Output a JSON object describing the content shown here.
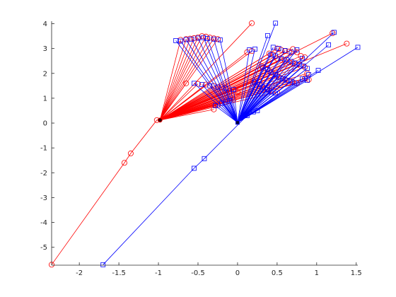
{
  "chart_data": {
    "type": "line",
    "title": "",
    "xlabel": "",
    "ylabel": "",
    "xlim": [
      -2.35,
      1.52
    ],
    "ylim": [
      -5.72,
      4.1
    ],
    "xticks": [
      -2,
      -1.5,
      -1,
      -0.5,
      0,
      0.5,
      1,
      1.5
    ],
    "xtick_labels": [
      "-2",
      "-1.5",
      "-1",
      "-0.5",
      "0",
      "0.5",
      "1",
      "1.5"
    ],
    "yticks": [
      -5,
      -4,
      -3,
      -2,
      -1,
      0,
      1,
      2,
      3,
      4
    ],
    "ytick_labels": [
      "-5",
      "-4",
      "-3",
      "-2",
      "-1",
      "0",
      "1",
      "2",
      "3",
      "4"
    ],
    "grid": false,
    "box": false,
    "colors": {
      "red_series": "#ff0000",
      "blue_series": "#0000ff",
      "axes": "#262626"
    },
    "series": [
      {
        "color": "#ff0000",
        "marker": "circle",
        "hub": [
          -0.98,
          0.12
        ],
        "open_chain": [
          [
            -1.02,
            0.12
          ],
          [
            -1.35,
            -1.22
          ],
          [
            -1.43,
            -1.6
          ],
          [
            -2.35,
            -5.7
          ]
        ],
        "spokes": [
          [
            0.18,
            4.02
          ],
          [
            1.38,
            3.2
          ],
          [
            1.2,
            3.62
          ],
          [
            -0.72,
            3.35
          ],
          [
            -0.65,
            3.38
          ],
          [
            -0.6,
            3.4
          ],
          [
            -0.55,
            3.42
          ],
          [
            -0.5,
            3.45
          ],
          [
            -0.45,
            3.5
          ],
          [
            -0.4,
            3.48
          ],
          [
            -0.35,
            3.44
          ],
          [
            -0.3,
            3.41
          ],
          [
            -0.25,
            3.38
          ],
          [
            -0.65,
            1.6
          ],
          [
            -0.5,
            1.58
          ],
          [
            -0.4,
            1.55
          ],
          [
            -0.3,
            1.5
          ],
          [
            -0.2,
            1.45
          ],
          [
            -0.1,
            1.3
          ],
          [
            0.0,
            1.25
          ],
          [
            -0.3,
            0.55
          ],
          [
            -0.25,
            0.72
          ],
          [
            -0.15,
            0.85
          ],
          [
            -0.05,
            0.95
          ],
          [
            0.12,
            2.85
          ],
          [
            0.18,
            2.9
          ],
          [
            0.5,
            3.0
          ],
          [
            0.55,
            2.95
          ],
          [
            0.6,
            2.9
          ],
          [
            0.65,
            2.88
          ],
          [
            0.7,
            2.98
          ],
          [
            0.75,
            2.85
          ],
          [
            0.8,
            2.7
          ],
          [
            0.4,
            2.8
          ],
          [
            0.45,
            2.75
          ],
          [
            0.5,
            2.6
          ],
          [
            0.55,
            2.55
          ],
          [
            0.6,
            2.5
          ],
          [
            0.65,
            2.45
          ],
          [
            0.7,
            2.4
          ],
          [
            0.75,
            2.35
          ],
          [
            0.8,
            2.3
          ],
          [
            0.85,
            2.25
          ],
          [
            0.3,
            2.3
          ],
          [
            0.35,
            2.2
          ],
          [
            0.4,
            2.1
          ],
          [
            0.45,
            2.0
          ],
          [
            0.5,
            1.9
          ],
          [
            0.55,
            1.8
          ],
          [
            0.6,
            1.75
          ],
          [
            0.65,
            1.7
          ],
          [
            0.7,
            1.65
          ],
          [
            0.75,
            1.6
          ],
          [
            0.2,
            1.7
          ],
          [
            0.25,
            1.6
          ],
          [
            0.3,
            1.5
          ],
          [
            0.35,
            1.4
          ],
          [
            0.4,
            1.3
          ],
          [
            0.5,
            1.25
          ],
          [
            0.85,
            1.8
          ],
          [
            0.9,
            1.75
          ],
          [
            0.88,
            2.0
          ],
          [
            0.85,
            2.65
          ]
        ]
      },
      {
        "color": "#0000ff",
        "marker": "square",
        "hub": [
          0.0,
          0.02
        ],
        "open_chain": [
          [
            0.12,
            0.3
          ],
          [
            -0.42,
            -1.43
          ],
          [
            -0.55,
            -1.82
          ],
          [
            -1.7,
            -5.7
          ]
        ],
        "spokes": [
          [
            0.48,
            4.02
          ],
          [
            1.52,
            3.05
          ],
          [
            1.22,
            3.65
          ],
          [
            0.38,
            3.52
          ],
          [
            1.15,
            3.15
          ],
          [
            1.02,
            2.12
          ],
          [
            -0.78,
            3.32
          ],
          [
            -0.72,
            3.3
          ],
          [
            -0.65,
            3.36
          ],
          [
            -0.58,
            3.38
          ],
          [
            -0.5,
            3.42
          ],
          [
            -0.43,
            3.44
          ],
          [
            -0.38,
            3.4
          ],
          [
            -0.3,
            3.38
          ],
          [
            -0.22,
            3.35
          ],
          [
            -0.55,
            1.6
          ],
          [
            -0.45,
            1.55
          ],
          [
            -0.35,
            1.5
          ],
          [
            -0.25,
            1.45
          ],
          [
            -0.15,
            1.4
          ],
          [
            -0.05,
            1.35
          ],
          [
            -0.28,
            0.7
          ],
          [
            -0.2,
            0.8
          ],
          [
            -0.1,
            0.9
          ],
          [
            0.15,
            2.95
          ],
          [
            0.22,
            2.98
          ],
          [
            0.45,
            3.05
          ],
          [
            0.52,
            3.0
          ],
          [
            0.6,
            2.92
          ],
          [
            0.68,
            2.85
          ],
          [
            0.75,
            2.95
          ],
          [
            0.82,
            2.6
          ],
          [
            0.42,
            2.75
          ],
          [
            0.48,
            2.7
          ],
          [
            0.55,
            2.6
          ],
          [
            0.62,
            2.55
          ],
          [
            0.68,
            2.48
          ],
          [
            0.72,
            2.42
          ],
          [
            0.78,
            2.38
          ],
          [
            0.83,
            2.3
          ],
          [
            0.88,
            2.2
          ],
          [
            0.32,
            2.25
          ],
          [
            0.38,
            2.15
          ],
          [
            0.42,
            2.05
          ],
          [
            0.48,
            1.95
          ],
          [
            0.52,
            1.85
          ],
          [
            0.58,
            1.78
          ],
          [
            0.62,
            1.72
          ],
          [
            0.68,
            1.68
          ],
          [
            0.72,
            1.62
          ],
          [
            0.22,
            1.65
          ],
          [
            0.28,
            1.55
          ],
          [
            0.32,
            1.45
          ],
          [
            0.38,
            1.35
          ],
          [
            0.42,
            1.25
          ],
          [
            0.48,
            1.2
          ],
          [
            0.82,
            1.78
          ],
          [
            0.88,
            1.72
          ],
          [
            0.9,
            1.95
          ],
          [
            0.1,
            0.35
          ],
          [
            0.2,
            0.45
          ],
          [
            0.25,
            0.5
          ]
        ]
      }
    ]
  }
}
